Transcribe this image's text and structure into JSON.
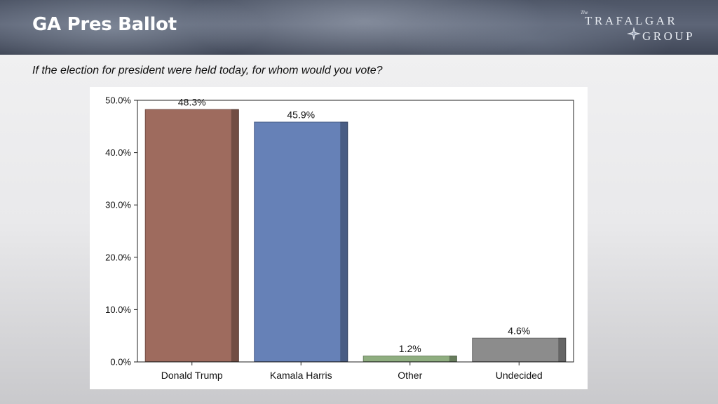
{
  "slide": {
    "title": "GA Pres Ballot",
    "question": "If the election for president were held today, for whom would you vote?"
  },
  "logo": {
    "small_text": "The",
    "line1": "TRAFALGAR",
    "line2": "GROUP"
  },
  "colors": {
    "trump": "#9e6b5e",
    "harris": "#6681b7",
    "other": "#8fae80",
    "undecided": "#8c8c8c"
  },
  "chart_data": {
    "type": "bar",
    "categories": [
      "Donald Trump",
      "Kamala Harris",
      "Other",
      "Undecided"
    ],
    "values": [
      48.3,
      45.9,
      1.2,
      4.6
    ],
    "data_labels": [
      "48.3%",
      "45.9%",
      "1.2%",
      "4.6%"
    ],
    "bar_colors": [
      "#9e6b5e",
      "#6681b7",
      "#8fae80",
      "#8c8c8c"
    ],
    "ylim": [
      0,
      50
    ],
    "yticks": [
      0,
      10,
      20,
      30,
      40,
      50
    ],
    "ytick_labels": [
      "0.0%",
      "10.0%",
      "20.0%",
      "30.0%",
      "40.0%",
      "50.0%"
    ],
    "title": "",
    "xlabel": "",
    "ylabel": "",
    "grid": false,
    "legend": "none"
  }
}
